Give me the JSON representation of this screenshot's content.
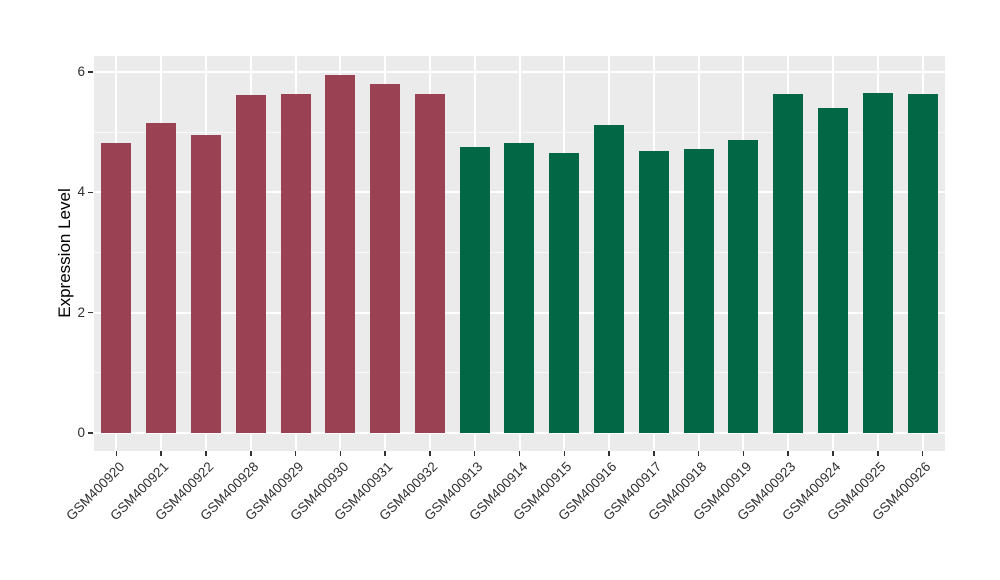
{
  "chart_data": {
    "type": "bar",
    "title": "",
    "xlabel": "",
    "ylabel": "Expression Level",
    "categories": [
      "GSM400920",
      "GSM400921",
      "GSM400922",
      "GSM400928",
      "GSM400929",
      "GSM400930",
      "GSM400931",
      "GSM400932",
      "GSM400913",
      "GSM400914",
      "GSM400915",
      "GSM400916",
      "GSM400917",
      "GSM400918",
      "GSM400919",
      "GSM400923",
      "GSM400924",
      "GSM400925",
      "GSM400926"
    ],
    "values": [
      4.82,
      5.15,
      4.95,
      5.62,
      5.63,
      5.96,
      5.8,
      5.63,
      4.76,
      4.82,
      4.65,
      5.13,
      4.69,
      4.72,
      4.88,
      5.63,
      5.4,
      5.65,
      5.63
    ],
    "bar_colors": [
      "#9A4254",
      "#9A4254",
      "#9A4254",
      "#9A4254",
      "#9A4254",
      "#9A4254",
      "#9A4254",
      "#9A4254",
      "#016745",
      "#016745",
      "#016745",
      "#016745",
      "#016745",
      "#016745",
      "#016745",
      "#016745",
      "#016745",
      "#016745",
      "#016745"
    ],
    "groups": [
      {
        "name": "red-group",
        "color": "#9A4254",
        "samples": [
          "GSM400920",
          "GSM400921",
          "GSM400922",
          "GSM400928",
          "GSM400929",
          "GSM400930",
          "GSM400931",
          "GSM400932"
        ]
      },
      {
        "name": "green-group",
        "color": "#016745",
        "samples": [
          "GSM400913",
          "GSM400914",
          "GSM400915",
          "GSM400916",
          "GSM400917",
          "GSM400918",
          "GSM400919",
          "GSM400923",
          "GSM400924",
          "GSM400925",
          "GSM400926"
        ]
      }
    ],
    "ylim": [
      -0.3,
      6.27
    ],
    "yticks": [
      "0",
      "2",
      "4",
      "6"
    ],
    "ytick_values": [
      0,
      2,
      4,
      6
    ],
    "minor_ytick_values": [
      1,
      3,
      5
    ],
    "x_tick_rotation_deg": 45,
    "bar_width_fraction": 0.67,
    "legend_position": "none",
    "grid": "on",
    "colors": {
      "figure_background": "#FFFFFF",
      "panel_background": "#EBEBEB",
      "grid_major": "#FFFFFF",
      "grid_minor": "#FFFFFF",
      "tick_mark": "#333333",
      "tick_label": "#303030",
      "axis_title": "#000000"
    }
  }
}
